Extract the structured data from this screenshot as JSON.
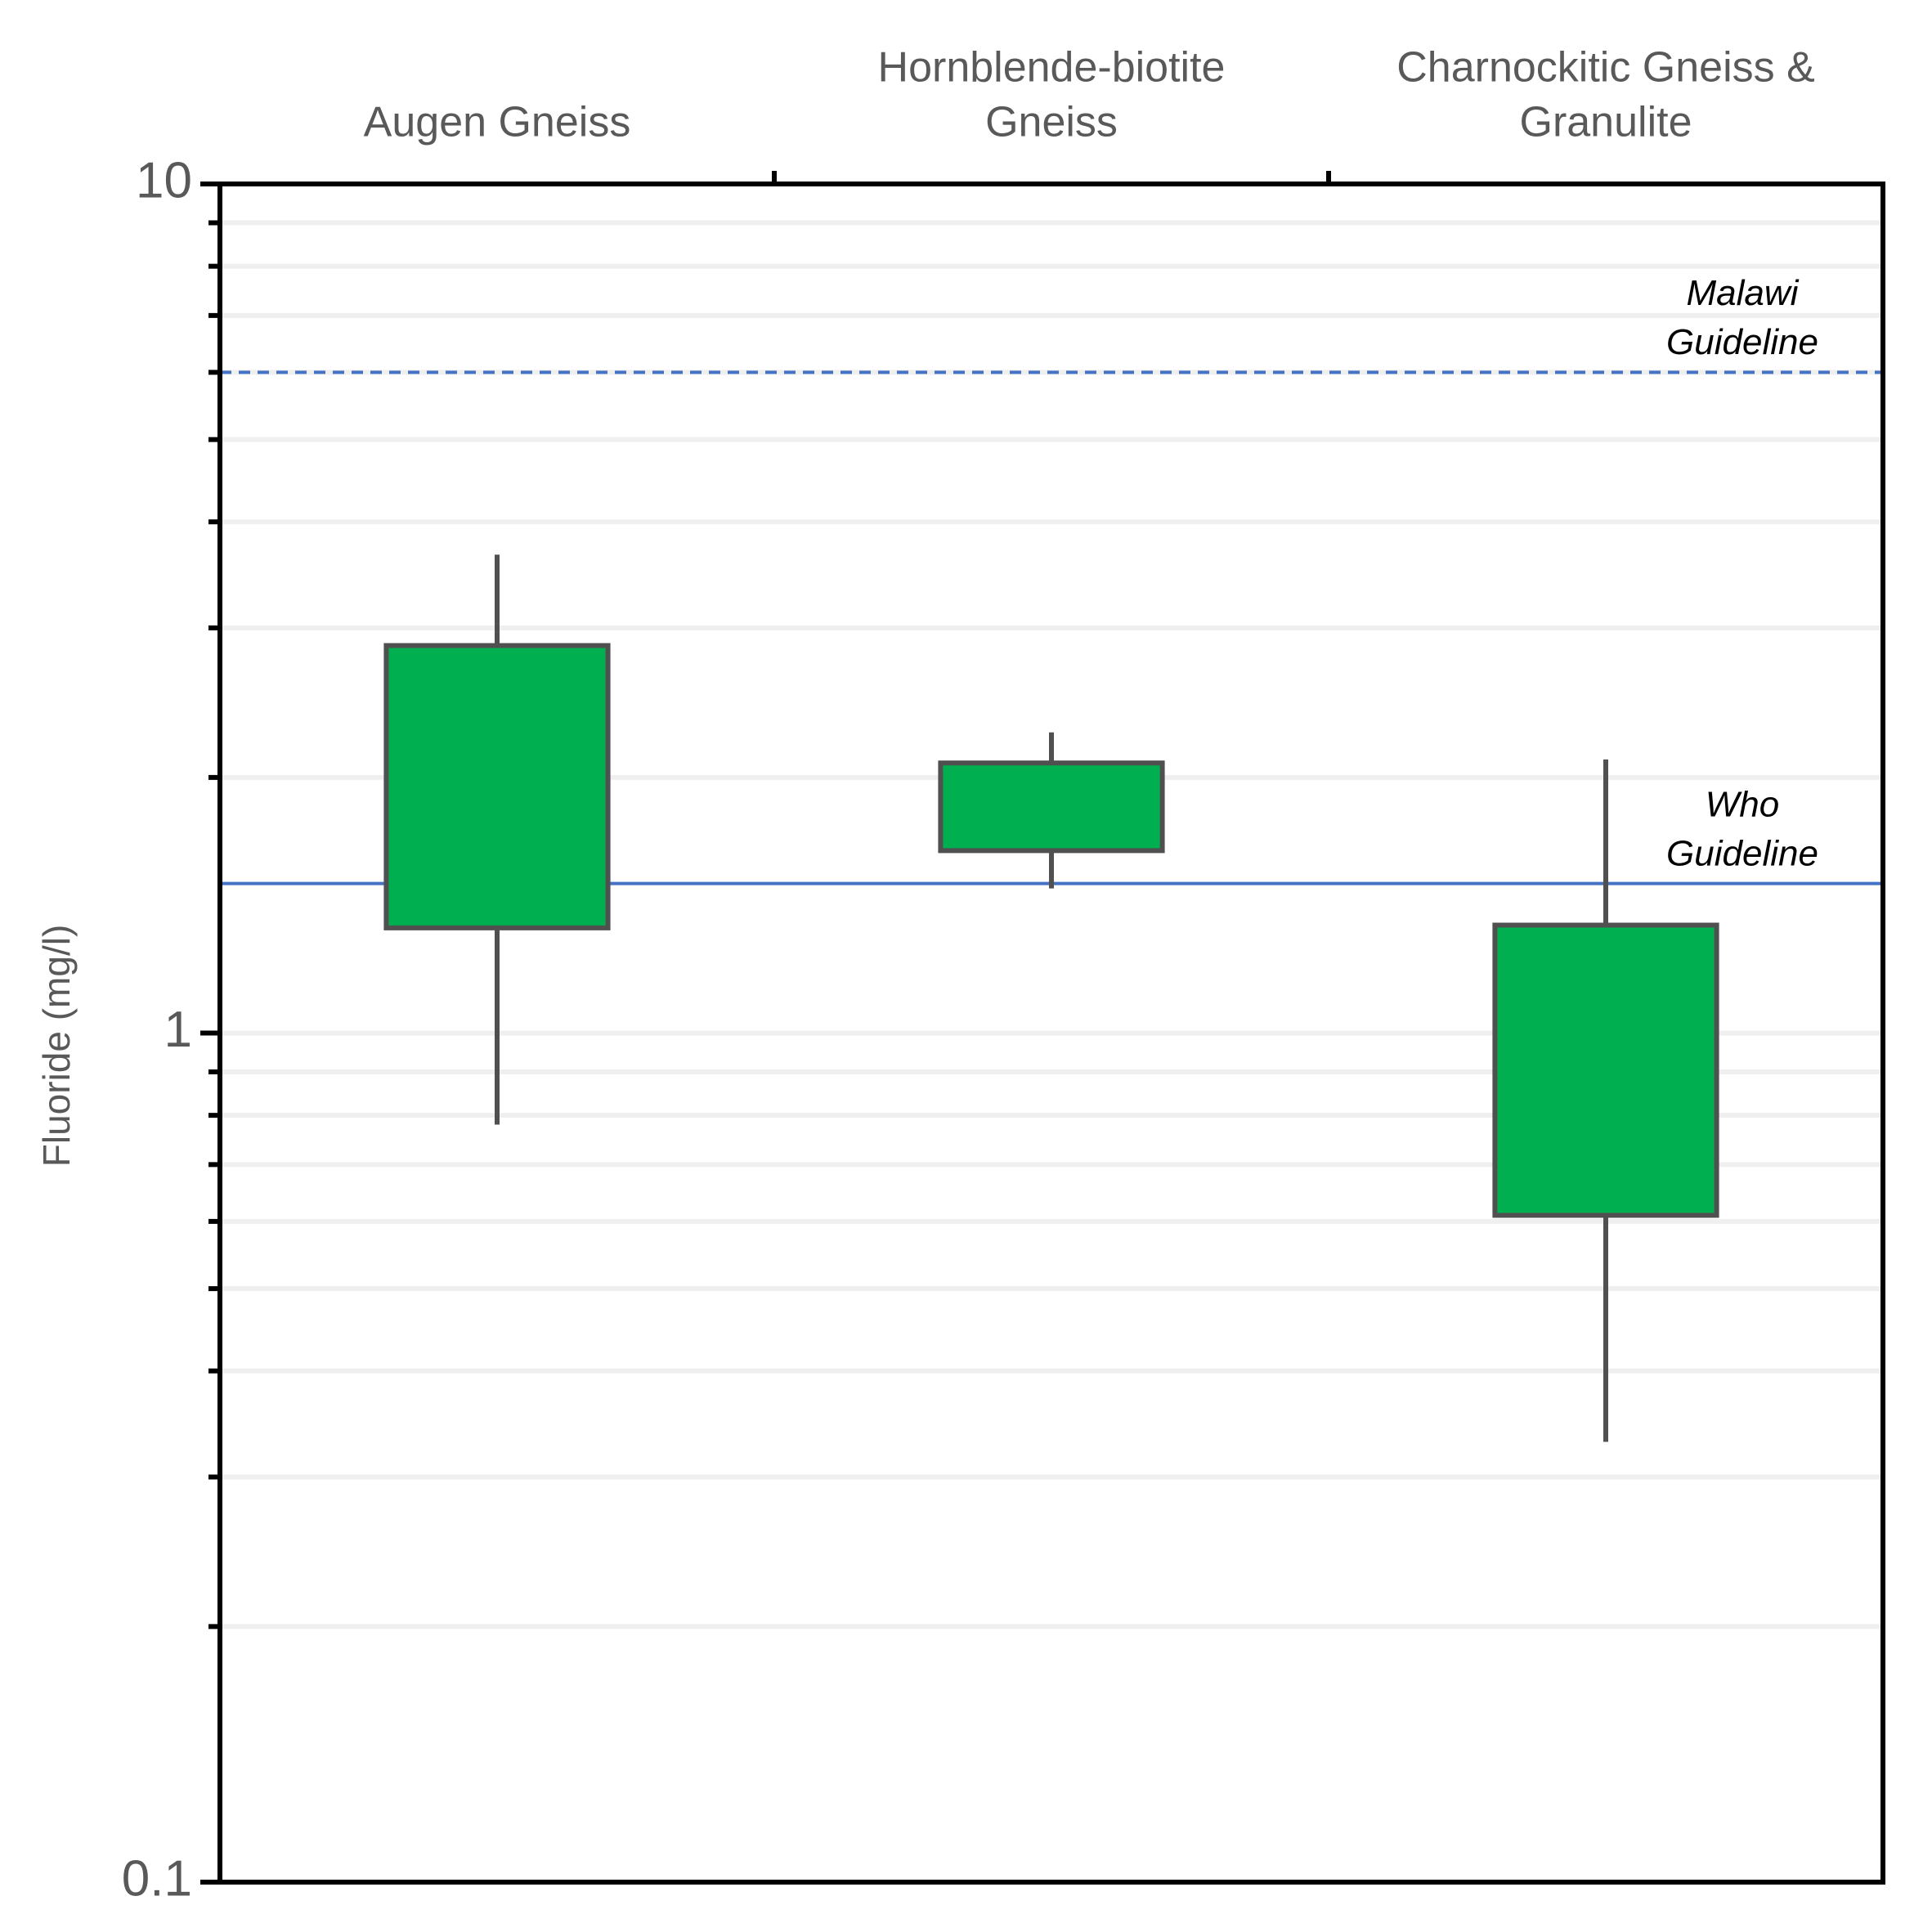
{
  "chart_data": {
    "type": "box",
    "y_label": "Fluoride (mg/l)",
    "categories": [
      [
        "Augen Gneiss"
      ],
      [
        "Hornblende-biotite",
        "Gneiss"
      ],
      [
        "Charnockitic Gneiss &",
        "Granulite"
      ]
    ],
    "boxes": [
      {
        "min": 0.78,
        "q1": 1.33,
        "q3": 2.86,
        "max": 3.66
      },
      {
        "min": 1.48,
        "q1": 1.64,
        "q3": 2.08,
        "max": 2.26
      },
      {
        "min": 0.33,
        "q1": 0.61,
        "q3": 1.34,
        "max": 2.1
      }
    ],
    "color": "#00b050",
    "edge_color": "#505050",
    "ylog": true,
    "ylim": [
      0.1,
      10
    ],
    "yticks": [
      0.1,
      1,
      10
    ],
    "yminorticks": [
      0.2,
      0.3,
      0.4,
      0.5,
      0.6,
      0.7,
      0.8,
      0.9,
      2,
      3,
      4,
      5,
      6,
      7,
      8,
      9
    ],
    "grid": true,
    "annotations": [
      {
        "text": [
          "Malawi",
          "Guideline"
        ],
        "value": 6,
        "style": "dashed",
        "color": "#4472c4"
      },
      {
        "text": [
          "Who",
          "Guideline"
        ],
        "value": 1.5,
        "style": "solid",
        "color": "#4472c4"
      }
    ]
  }
}
